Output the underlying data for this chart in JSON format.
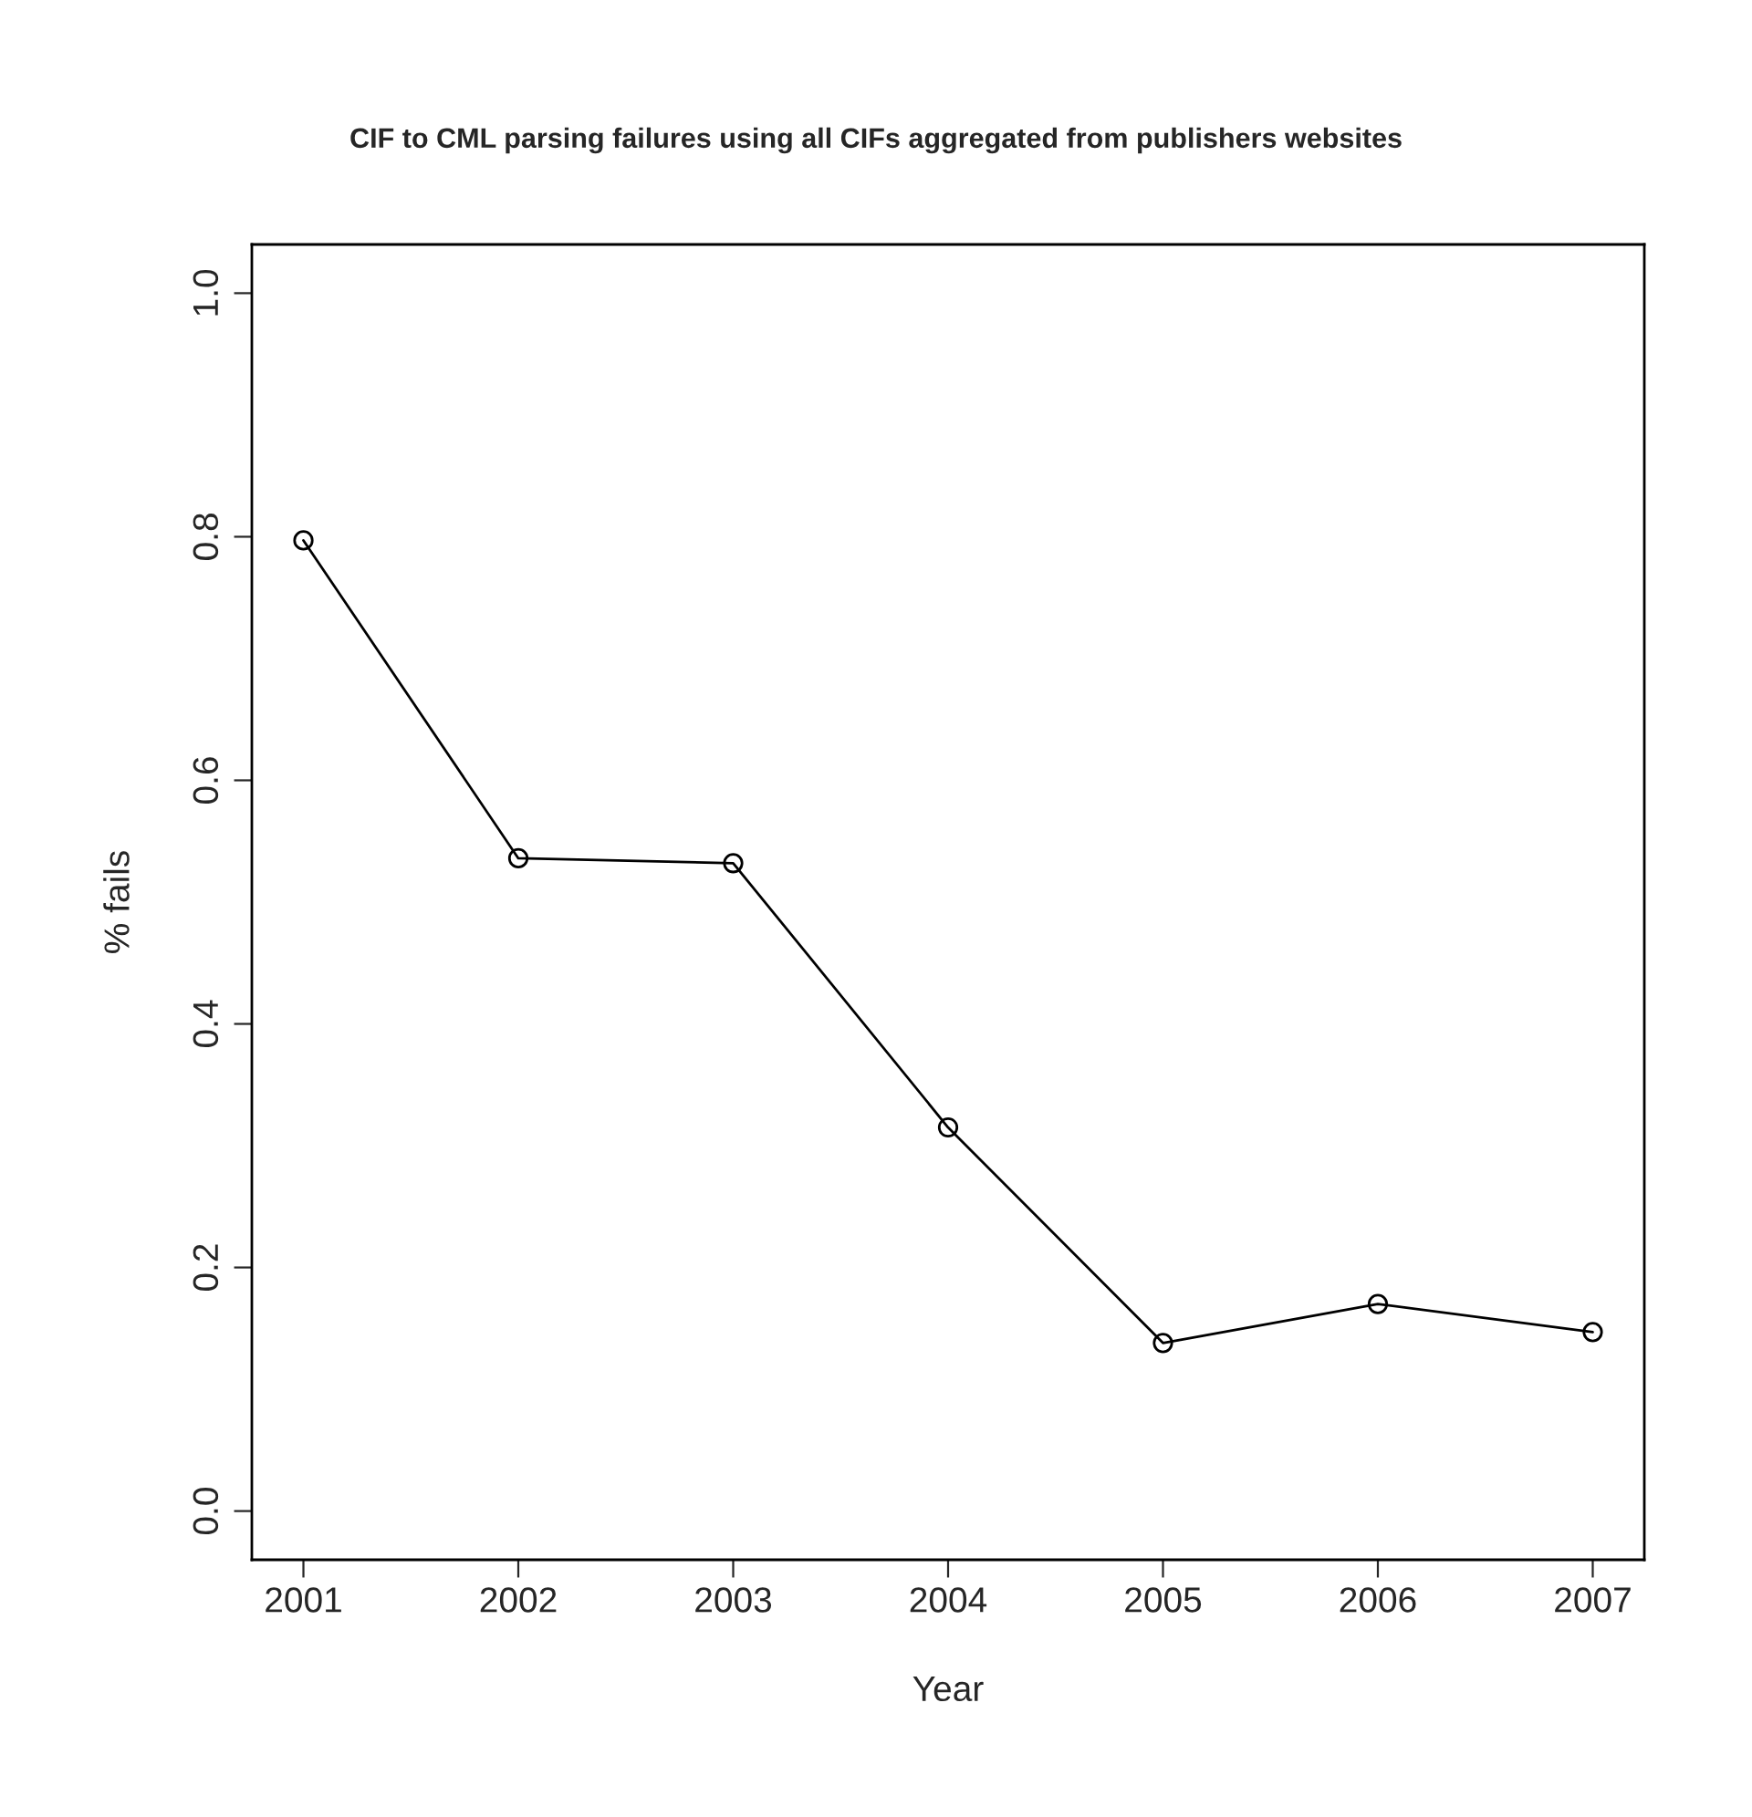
{
  "chart_data": {
    "type": "line",
    "title": "CIF to CML parsing failures using all CIFs aggregated from publishers websites",
    "xlabel": "Year",
    "ylabel": "% fails",
    "x": [
      2001,
      2002,
      2003,
      2004,
      2005,
      2006,
      2007
    ],
    "series": [
      {
        "color": "#000000",
        "values": [
          0.797,
          0.536,
          0.532,
          0.315,
          0.138,
          0.17,
          0.147
        ]
      }
    ],
    "xlim": [
      2000.76,
      2007.24
    ],
    "xticks": [
      2001,
      2002,
      2003,
      2004,
      2005,
      2006,
      2007
    ],
    "ylim": [
      -0.04,
      1.04
    ],
    "yticks": [
      {
        "value": 0,
        "label": "0.0"
      },
      0.2,
      0.4,
      0.6,
      0.8,
      {
        "value": 1,
        "label": "1.0"
      }
    ],
    "grid": false,
    "legend": false,
    "marker": "circle",
    "line_style": "solid"
  }
}
